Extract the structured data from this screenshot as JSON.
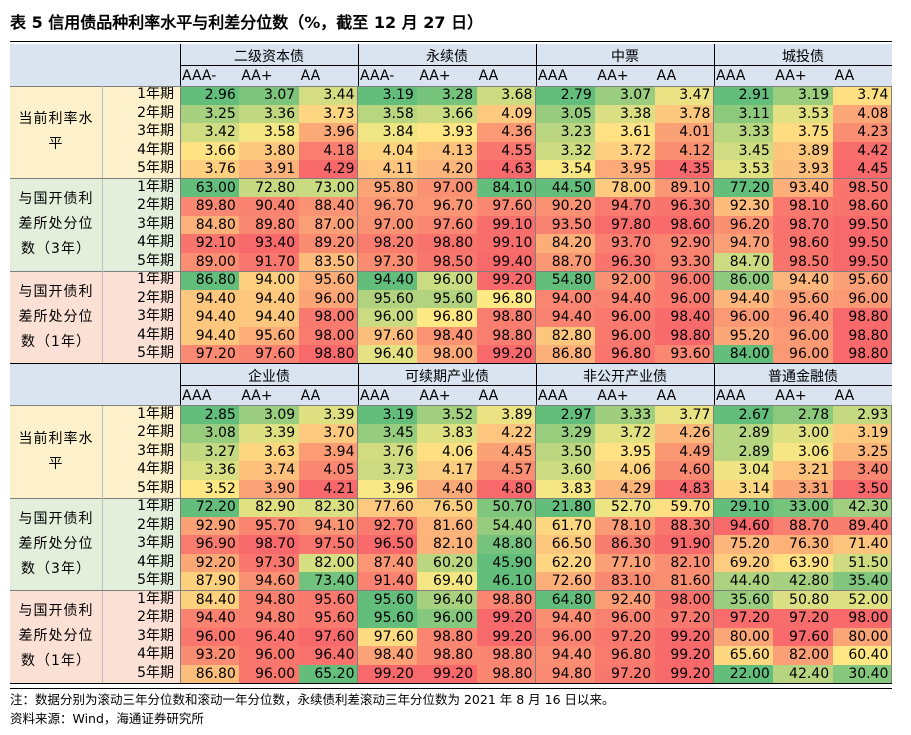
{
  "title": "表 5 信用债品种利率水平与利差分位数（%，截至 12 月 27 日）",
  "notes": [
    "注：数据分别为滚动三年分位数和滚动一年分位数，永续债利差滚动三年分位数为 2021 年 8 月 16 日以来。",
    "资料来源：Wind，海通证券研究所"
  ],
  "colors": {
    "header_bg": "#d9e4f0",
    "current_bg": "#fdf1cc",
    "three_year_bg": "#e3efda",
    "one_year_bg": "#fbe1d5",
    "scale_low": "#63be7b",
    "scale_mid": "#ffe984",
    "scale_high": "#f8696b"
  },
  "tenors": [
    "1年期",
    "2年期",
    "3年期",
    "4年期",
    "5年期"
  ],
  "section_labels": [
    "当前利率水平",
    "与国开债利差所处分位数（3年）",
    "与国开债利差所处分位数（1年）"
  ],
  "blocks": [
    {
      "groups": [
        {
          "name": "二级资本债",
          "grades": [
            "AAA-",
            "AA+",
            "AA"
          ]
        },
        {
          "name": "永续债",
          "grades": [
            "AAA-",
            "AA+",
            "AA"
          ]
        },
        {
          "name": "中票",
          "grades": [
            "AAA",
            "AA+",
            "AA"
          ]
        },
        {
          "name": "城投债",
          "grades": [
            "AAA",
            "AA+",
            "AA"
          ]
        }
      ],
      "sections": [
        {
          "rows": [
            [
              "2.96",
              "3.07",
              "3.44",
              "3.19",
              "3.28",
              "3.68",
              "2.79",
              "3.07",
              "3.47",
              "2.91",
              "3.19",
              "3.74"
            ],
            [
              "3.25",
              "3.36",
              "3.73",
              "3.58",
              "3.66",
              "4.09",
              "3.05",
              "3.38",
              "3.78",
              "3.11",
              "3.53",
              "4.08"
            ],
            [
              "3.42",
              "3.58",
              "3.96",
              "3.84",
              "3.93",
              "4.36",
              "3.23",
              "3.61",
              "4.01",
              "3.33",
              "3.75",
              "4.23"
            ],
            [
              "3.66",
              "3.80",
              "4.18",
              "4.04",
              "4.13",
              "4.55",
              "3.32",
              "3.72",
              "4.12",
              "3.45",
              "3.89",
              "4.42"
            ],
            [
              "3.76",
              "3.91",
              "4.29",
              "4.11",
              "4.20",
              "4.63",
              "3.54",
              "3.95",
              "4.35",
              "3.53",
              "3.93",
              "4.45"
            ]
          ]
        },
        {
          "rows": [
            [
              "63.00",
              "72.80",
              "73.00",
              "95.80",
              "97.00",
              "84.10",
              "44.50",
              "78.00",
              "89.10",
              "77.20",
              "93.40",
              "98.50"
            ],
            [
              "89.80",
              "90.40",
              "88.40",
              "96.70",
              "96.70",
              "97.60",
              "90.20",
              "94.70",
              "96.30",
              "92.30",
              "98.10",
              "98.60"
            ],
            [
              "84.80",
              "89.80",
              "87.00",
              "97.00",
              "97.60",
              "99.10",
              "93.50",
              "97.80",
              "98.60",
              "96.20",
              "98.70",
              "99.50"
            ],
            [
              "92.10",
              "93.40",
              "89.20",
              "98.20",
              "98.80",
              "99.10",
              "84.20",
              "93.70",
              "92.90",
              "94.70",
              "98.60",
              "99.50"
            ],
            [
              "89.00",
              "91.70",
              "83.50",
              "97.30",
              "98.50",
              "99.40",
              "88.70",
              "96.30",
              "93.30",
              "84.70",
              "98.50",
              "99.50"
            ]
          ]
        },
        {
          "rows": [
            [
              "86.80",
              "94.00",
              "95.60",
              "94.40",
              "96.00",
              "99.20",
              "54.80",
              "92.00",
              "96.00",
              "86.00",
              "94.40",
              "95.60"
            ],
            [
              "94.40",
              "94.40",
              "96.00",
              "95.60",
              "95.60",
              "96.80",
              "94.00",
              "94.40",
              "96.00",
              "94.40",
              "95.60",
              "96.00"
            ],
            [
              "94.40",
              "94.40",
              "98.00",
              "96.00",
              "96.80",
              "98.80",
              "94.40",
              "96.00",
              "98.40",
              "96.00",
              "96.40",
              "98.80"
            ],
            [
              "94.40",
              "95.60",
              "98.00",
              "97.60",
              "98.40",
              "98.80",
              "82.80",
              "96.00",
              "98.80",
              "95.20",
              "96.00",
              "98.80"
            ],
            [
              "97.20",
              "97.60",
              "98.80",
              "96.40",
              "98.00",
              "99.20",
              "86.80",
              "96.80",
              "93.60",
              "84.00",
              "96.00",
              "98.80"
            ]
          ]
        }
      ]
    },
    {
      "groups": [
        {
          "name": "企业债",
          "grades": [
            "AAA",
            "AA+",
            "AA"
          ]
        },
        {
          "name": "可续期产业债",
          "grades": [
            "AAA",
            "AA+",
            "AA"
          ]
        },
        {
          "name": "非公开产业债",
          "grades": [
            "AAA",
            "AA+",
            "AA"
          ]
        },
        {
          "name": "普通金融债",
          "grades": [
            "AAA",
            "AA+",
            "AA"
          ]
        }
      ],
      "sections": [
        {
          "rows": [
            [
              "2.85",
              "3.09",
              "3.39",
              "3.19",
              "3.52",
              "3.89",
              "2.97",
              "3.33",
              "3.77",
              "2.67",
              "2.78",
              "2.93"
            ],
            [
              "3.08",
              "3.39",
              "3.70",
              "3.45",
              "3.83",
              "4.22",
              "3.29",
              "3.72",
              "4.26",
              "2.89",
              "3.00",
              "3.19"
            ],
            [
              "3.27",
              "3.63",
              "3.94",
              "3.76",
              "4.06",
              "4.45",
              "3.50",
              "3.95",
              "4.49",
              "2.89",
              "3.06",
              "3.25"
            ],
            [
              "3.36",
              "3.74",
              "4.05",
              "3.73",
              "4.17",
              "4.57",
              "3.60",
              "4.06",
              "4.60",
              "3.04",
              "3.21",
              "3.40"
            ],
            [
              "3.52",
              "3.90",
              "4.21",
              "3.96",
              "4.40",
              "4.80",
              "3.83",
              "4.29",
              "4.83",
              "3.14",
              "3.31",
              "3.50"
            ]
          ]
        },
        {
          "rows": [
            [
              "72.20",
              "82.90",
              "82.30",
              "77.60",
              "76.50",
              "50.70",
              "21.80",
              "52.70",
              "59.70",
              "29.10",
              "33.00",
              "42.30"
            ],
            [
              "92.90",
              "95.70",
              "94.10",
              "92.70",
              "81.60",
              "54.40",
              "61.70",
              "78.10",
              "88.30",
              "94.60",
              "88.70",
              "89.40"
            ],
            [
              "96.90",
              "98.70",
              "97.50",
              "96.50",
              "82.10",
              "48.80",
              "66.50",
              "86.30",
              "91.90",
              "75.20",
              "76.30",
              "71.40"
            ],
            [
              "92.20",
              "97.30",
              "82.00",
              "87.40",
              "60.20",
              "45.90",
              "62.20",
              "77.10",
              "82.10",
              "69.20",
              "63.90",
              "51.50"
            ],
            [
              "87.90",
              "94.60",
              "73.40",
              "91.40",
              "69.40",
              "46.10",
              "72.60",
              "83.10",
              "81.60",
              "44.40",
              "42.80",
              "35.40"
            ]
          ]
        },
        {
          "rows": [
            [
              "84.40",
              "94.80",
              "95.60",
              "95.60",
              "96.40",
              "98.80",
              "64.80",
              "92.40",
              "98.00",
              "35.60",
              "50.80",
              "52.00"
            ],
            [
              "94.40",
              "94.80",
              "95.60",
              "95.60",
              "96.00",
              "99.20",
              "94.40",
              "96.00",
              "97.20",
              "97.20",
              "97.20",
              "98.00"
            ],
            [
              "96.00",
              "96.40",
              "97.60",
              "97.60",
              "98.80",
              "99.20",
              "96.00",
              "97.20",
              "99.20",
              "80.00",
              "97.60",
              "80.00"
            ],
            [
              "93.20",
              "96.00",
              "96.40",
              "98.40",
              "98.80",
              "98.80",
              "94.40",
              "96.80",
              "99.20",
              "65.60",
              "82.00",
              "60.40"
            ],
            [
              "86.80",
              "96.00",
              "65.20",
              "99.20",
              "99.20",
              "98.80",
              "94.80",
              "97.20",
              "99.20",
              "22.00",
              "42.40",
              "30.40"
            ]
          ]
        }
      ]
    }
  ]
}
